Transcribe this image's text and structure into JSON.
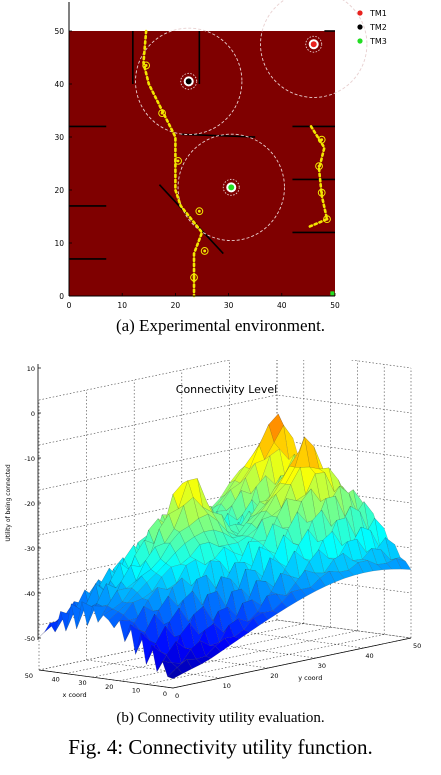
{
  "chart_data": [
    {
      "type": "scatter",
      "title": "",
      "xlim": [
        0,
        50
      ],
      "ylim": [
        0,
        50
      ],
      "xticks": [
        "0",
        "10",
        "20",
        "30",
        "40",
        "50"
      ],
      "yticks": [
        "0",
        "10",
        "20",
        "30",
        "40",
        "50"
      ],
      "grid": false,
      "legend_position": "top-right",
      "background_color": "#7f0000",
      "series": [
        {
          "name": "TM1",
          "color": "#e8211d",
          "points": [
            [
              46,
              47.5
            ]
          ]
        },
        {
          "name": "TM2",
          "color": "#000000",
          "points": [
            [
              22.5,
              40.5
            ]
          ]
        },
        {
          "name": "TM3",
          "color": "#22dd22",
          "points": [
            [
              30.5,
              20.5
            ]
          ]
        }
      ],
      "communication_ranges": [
        {
          "center": [
            46,
            47.5
          ],
          "radii": [
            1.5,
            10
          ]
        },
        {
          "center": [
            22.5,
            40.5
          ],
          "radii": [
            1.5,
            10
          ]
        },
        {
          "center": [
            30.5,
            20.5
          ],
          "radii": [
            1.5,
            10
          ]
        }
      ],
      "walls": [
        [
          [
            12,
            40
          ],
          [
            12,
            50
          ]
        ],
        [
          [
            24.5,
            40
          ],
          [
            24.5,
            50
          ]
        ],
        [
          [
            0,
            32
          ],
          [
            7,
            32
          ]
        ],
        [
          [
            0,
            17
          ],
          [
            7,
            17
          ]
        ],
        [
          [
            0,
            7
          ],
          [
            7,
            7
          ]
        ],
        [
          [
            21,
            30.5
          ],
          [
            35,
            30
          ]
        ],
        [
          [
            17,
            21
          ],
          [
            29,
            8
          ]
        ],
        [
          [
            42,
            32
          ],
          [
            50,
            32
          ]
        ],
        [
          [
            42,
            22
          ],
          [
            50,
            22
          ]
        ],
        [
          [
            42,
            12
          ],
          [
            50,
            12
          ]
        ],
        [
          [
            48,
            50
          ],
          [
            50,
            50
          ]
        ]
      ],
      "paths": [
        [
          [
            14.5,
            50
          ],
          [
            14,
            44
          ],
          [
            15,
            40
          ],
          [
            17.5,
            35
          ],
          [
            20,
            30
          ],
          [
            20,
            25
          ],
          [
            20,
            20
          ],
          [
            21,
            17
          ],
          [
            25,
            12
          ],
          [
            23.5,
            8
          ],
          [
            23.5,
            0
          ]
        ],
        [
          [
            45.5,
            32
          ],
          [
            48,
            28
          ],
          [
            47,
            24
          ],
          [
            47.5,
            19
          ],
          [
            48.5,
            14.5
          ],
          [
            45,
            13
          ]
        ]
      ],
      "waypoints": [
        [
          14.5,
          43.5
        ],
        [
          17.5,
          34.5
        ],
        [
          20.5,
          25.5
        ],
        [
          24.5,
          16
        ],
        [
          25.5,
          8.5
        ],
        [
          23.5,
          3.5
        ],
        [
          47.5,
          29.5
        ],
        [
          47,
          24.5
        ],
        [
          47.5,
          19.5
        ],
        [
          48.5,
          14.5
        ]
      ],
      "start_marker": [
        49.5,
        0.5
      ]
    },
    {
      "type": "surface",
      "title": "Connectivity Level",
      "zlabel": "Utility of being connected",
      "xlabel": "x coord",
      "ylabel": "y coord",
      "zlim": [
        -50,
        10
      ],
      "zticks": [
        "10",
        "0",
        "-10",
        "-20",
        "-30",
        "-40",
        "-50"
      ],
      "xticks": [
        "50",
        "40",
        "30",
        "20",
        "10",
        "0"
      ],
      "yticks": [
        "0",
        "10",
        "20",
        "30",
        "40",
        "50"
      ],
      "grid": true,
      "colormap": "jet",
      "peaks": [
        {
          "location": "TM2",
          "x": 22.5,
          "y": 40.5,
          "z": -0.5
        },
        {
          "location": "TM1",
          "x": 46,
          "y": 47.5,
          "z": 1.5
        },
        {
          "location": "TM3",
          "x": 30.5,
          "y": 20.5,
          "z": -5
        }
      ]
    }
  ],
  "captions": {
    "a": "(a) Experimental environment.",
    "b": "(b) Connectivity utility evaluation.",
    "main": "Fig. 4: Connectivity utility function."
  }
}
